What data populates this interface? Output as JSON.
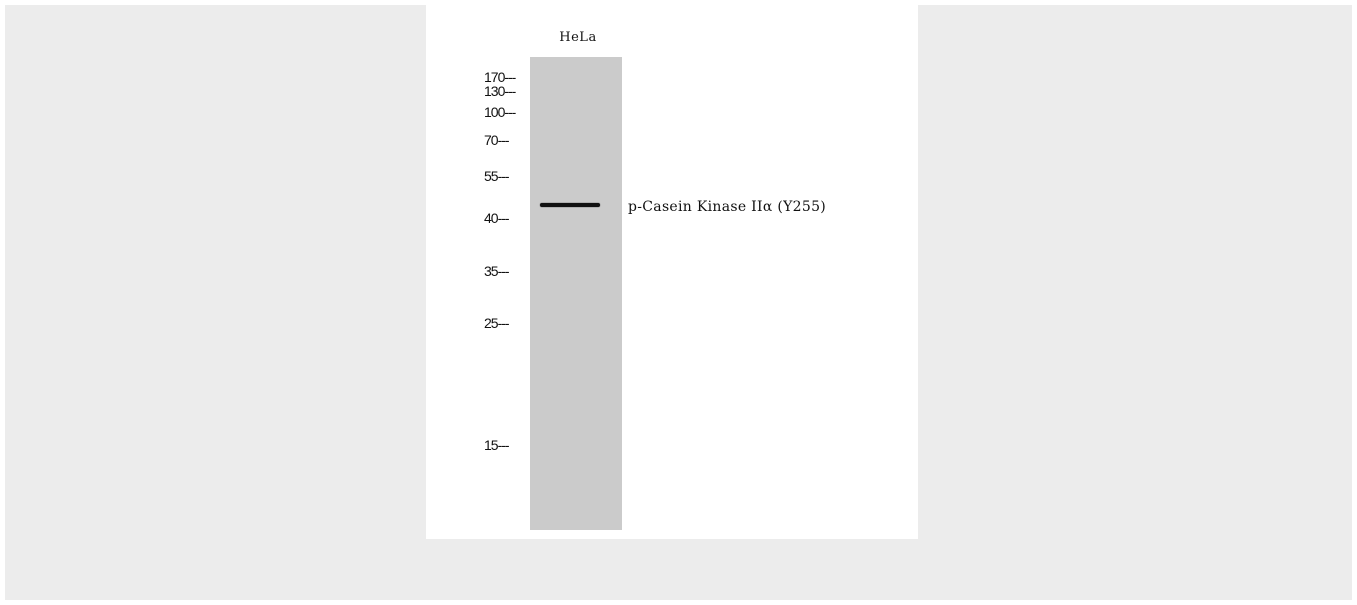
{
  "blot": {
    "lane_label": "HeLa",
    "band_label": "p-Casein Kinase IIα (Y255)",
    "markers": [
      {
        "value": "170",
        "dash": "---"
      },
      {
        "value": "130",
        "dash": "---"
      },
      {
        "value": "100",
        "dash": "---"
      },
      {
        "value": "70",
        "dash": "---"
      },
      {
        "value": "55",
        "dash": "---"
      },
      {
        "value": "40",
        "dash": "---"
      },
      {
        "value": "35",
        "dash": "---"
      },
      {
        "value": "25",
        "dash": "---"
      },
      {
        "value": "15",
        "dash": "---"
      }
    ]
  }
}
